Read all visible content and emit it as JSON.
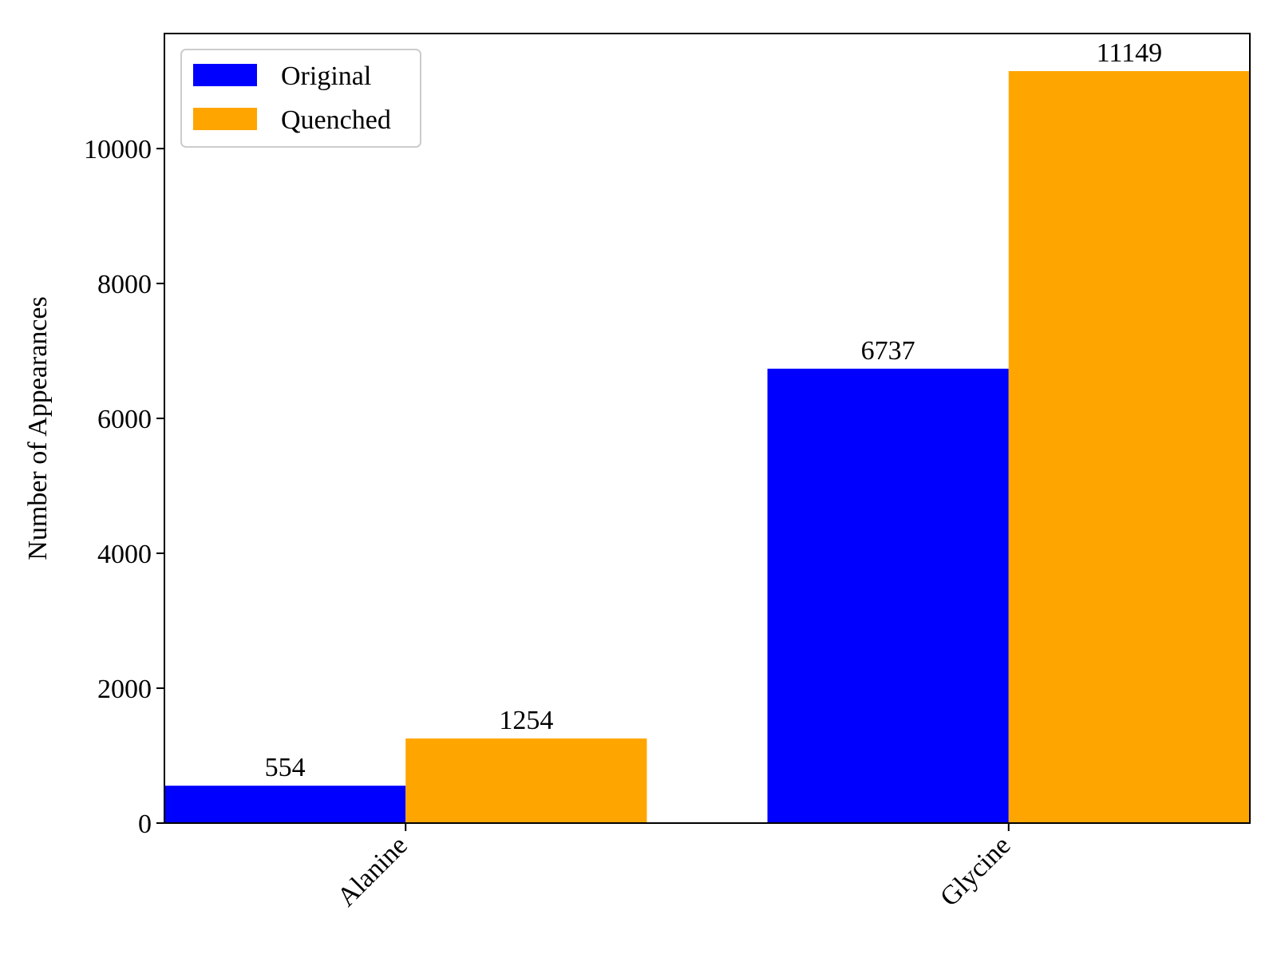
{
  "chart_data": {
    "type": "bar",
    "categories": [
      "Alanine",
      "Glycine"
    ],
    "series": [
      {
        "name": "Original",
        "color": "#0000ff",
        "values": [
          554,
          6737
        ]
      },
      {
        "name": "Quenched",
        "color": "#ffa500",
        "values": [
          1254,
          11149
        ]
      }
    ],
    "title": "",
    "xlabel": "",
    "ylabel": "Number of Appearances",
    "ylim": [
      0,
      11706
    ],
    "yticks": [
      0,
      2000,
      4000,
      6000,
      8000,
      10000
    ],
    "grid": false,
    "legend_position": "top-left",
    "data_labels": true
  }
}
